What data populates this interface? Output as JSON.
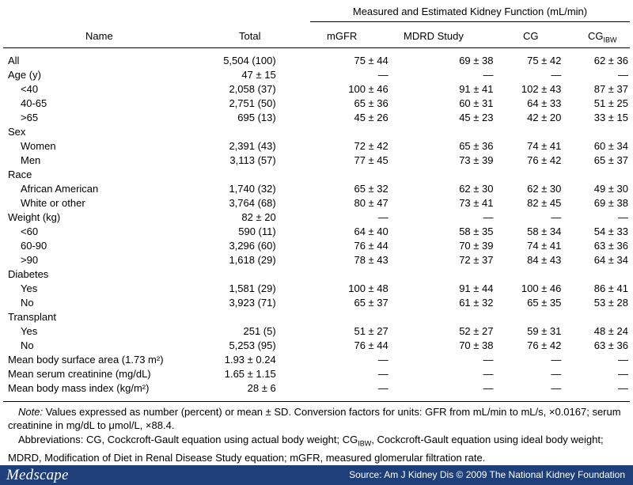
{
  "table": {
    "group_header": "Measured and Estimated Kidney Function (mL/min)",
    "headers": {
      "name": "Name",
      "total": "Total",
      "mgfr": "mGFR",
      "mdrd": "MDRD Study",
      "cg": "CG",
      "cgibw_main": "CG",
      "cgibw_sub": "IBW"
    },
    "rows": [
      {
        "name": "All",
        "indent": false,
        "total": "5,504 (100)",
        "mgfr": "75 ± 44",
        "mdrd": "69 ± 38",
        "cg": "75 ± 42",
        "cgibw": "62 ± 36"
      },
      {
        "name": "Age (y)",
        "indent": false,
        "total": "47 ± 15",
        "mgfr": "—",
        "mdrd": "—",
        "cg": "—",
        "cgibw": "—"
      },
      {
        "name": "<40",
        "indent": true,
        "total": "2,058 (37)",
        "mgfr": "100 ± 46",
        "mdrd": "91 ± 41",
        "cg": "102 ± 43",
        "cgibw": "87 ± 37"
      },
      {
        "name": "40-65",
        "indent": true,
        "total": "2,751 (50)",
        "mgfr": "65 ± 36",
        "mdrd": "60 ± 31",
        "cg": "64 ± 33",
        "cgibw": "51 ± 25"
      },
      {
        "name": ">65",
        "indent": true,
        "total": "695 (13)",
        "mgfr": "45 ± 26",
        "mdrd": "45 ± 23",
        "cg": "42 ± 20",
        "cgibw": "33 ± 15"
      },
      {
        "name": "Sex",
        "indent": false,
        "total": "",
        "mgfr": "",
        "mdrd": "",
        "cg": "",
        "cgibw": ""
      },
      {
        "name": "Women",
        "indent": true,
        "total": "2,391 (43)",
        "mgfr": "72 ± 42",
        "mdrd": "65 ± 36",
        "cg": "74 ± 41",
        "cgibw": "60 ± 34"
      },
      {
        "name": "Men",
        "indent": true,
        "total": "3,113 (57)",
        "mgfr": "77 ± 45",
        "mdrd": "73 ± 39",
        "cg": "76 ± 42",
        "cgibw": "65 ± 37"
      },
      {
        "name": "Race",
        "indent": false,
        "total": "",
        "mgfr": "",
        "mdrd": "",
        "cg": "",
        "cgibw": ""
      },
      {
        "name": "African American",
        "indent": true,
        "total": "1,740 (32)",
        "mgfr": "65 ± 32",
        "mdrd": "62 ± 30",
        "cg": "62 ± 30",
        "cgibw": "49 ± 30"
      },
      {
        "name": "White or other",
        "indent": true,
        "total": "3,764 (68)",
        "mgfr": "80 ± 47",
        "mdrd": "73 ± 41",
        "cg": "82 ± 45",
        "cgibw": "69 ± 38"
      },
      {
        "name": "Weight (kg)",
        "indent": false,
        "total": "82 ± 20",
        "mgfr": "—",
        "mdrd": "—",
        "cg": "—",
        "cgibw": "—"
      },
      {
        "name": "<60",
        "indent": true,
        "total": "590 (11)",
        "mgfr": "64 ± 40",
        "mdrd": "58 ± 35",
        "cg": "58 ± 34",
        "cgibw": "54 ± 33"
      },
      {
        "name": "60-90",
        "indent": true,
        "total": "3,296 (60)",
        "mgfr": "76 ± 44",
        "mdrd": "70 ± 39",
        "cg": "74 ± 41",
        "cgibw": "63 ± 36"
      },
      {
        "name": ">90",
        "indent": true,
        "total": "1,618 (29)",
        "mgfr": "78 ± 43",
        "mdrd": "72 ± 37",
        "cg": "84 ± 43",
        "cgibw": "64 ± 34"
      },
      {
        "name": "Diabetes",
        "indent": false,
        "total": "",
        "mgfr": "",
        "mdrd": "",
        "cg": "",
        "cgibw": ""
      },
      {
        "name": "Yes",
        "indent": true,
        "total": "1,581 (29)",
        "mgfr": "100 ± 48",
        "mdrd": "91 ± 44",
        "cg": "100 ± 46",
        "cgibw": "86 ± 41"
      },
      {
        "name": "No",
        "indent": true,
        "total": "3,923 (71)",
        "mgfr": "65 ± 37",
        "mdrd": "61 ± 32",
        "cg": "65 ± 35",
        "cgibw": "53 ± 28"
      },
      {
        "name": "Transplant",
        "indent": false,
        "total": "",
        "mgfr": "",
        "mdrd": "",
        "cg": "",
        "cgibw": ""
      },
      {
        "name": "Yes",
        "indent": true,
        "total": "251 (5)",
        "mgfr": "51 ± 27",
        "mdrd": "52 ± 27",
        "cg": "59 ± 31",
        "cgibw": "48 ± 24"
      },
      {
        "name": "No",
        "indent": true,
        "total": "5,253 (95)",
        "mgfr": "76 ± 44",
        "mdrd": "70 ± 38",
        "cg": "76 ± 42",
        "cgibw": "63 ± 36"
      },
      {
        "name": "Mean body surface area (1.73 m²)",
        "indent": false,
        "total": "1.93 ± 0.24",
        "mgfr": "—",
        "mdrd": "—",
        "cg": "—",
        "cgibw": "—"
      },
      {
        "name": "Mean serum creatinine (mg/dL)",
        "indent": false,
        "total": "1.65 ± 1.15",
        "mgfr": "—",
        "mdrd": "—",
        "cg": "—",
        "cgibw": "—"
      },
      {
        "name": "Mean body mass index (kg/m²)",
        "indent": false,
        "total": "28 ± 6",
        "mgfr": "—",
        "mdrd": "—",
        "cg": "—",
        "cgibw": "—"
      }
    ]
  },
  "notes": {
    "note_label": "Note:",
    "note_text": " Values expressed as number (percent) or mean ± SD. Conversion factors for units: GFR from mL/min to mL/s, ×0.0167; serum creatinine in mg/dL to μmol/L, ×88.4.",
    "abbr_part1": "Abbreviations: CG, Cockcroft-Gault equation using actual body weight; CG",
    "abbr_sub": "IBW",
    "abbr_part2": ", Cockcroft-Gault equation using ideal body weight; MDRD, Modification of Diet in Renal Disease Study equation; mGFR, measured glomerular filtration rate."
  },
  "footer": {
    "logo": "Medscape",
    "source": "Source: Am J Kidney Dis © 2009 The National Kidney Foundation",
    "background_color": "#1e3f7a"
  }
}
